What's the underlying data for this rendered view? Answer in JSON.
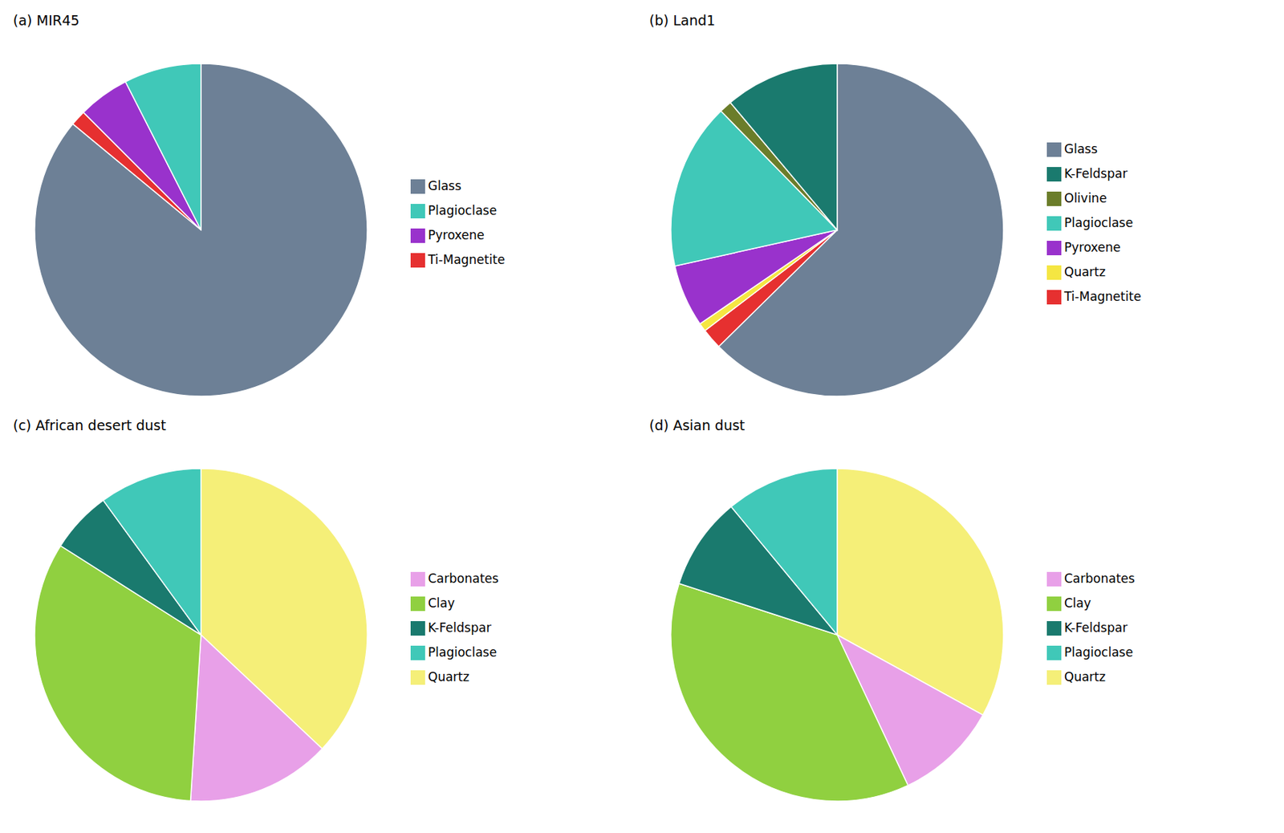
{
  "chart_data": [
    {
      "type": "pie",
      "title": "(a)  MIR45",
      "categories": [
        "Glass",
        "Ti-Magnetite",
        "Pyroxene",
        "Plagioclase"
      ],
      "values": [
        86,
        1.5,
        5,
        7.5
      ],
      "colors": [
        "#6d8096",
        "#e63030",
        "#9932cc",
        "#40c8b8"
      ],
      "legend": "right"
    },
    {
      "type": "pie",
      "title": "(b)  Land1",
      "categories": [
        "Glass",
        "Ti-Magnetite",
        "Quartz",
        "Pyroxene",
        "Plagioclase",
        "Olivine",
        "K-Feldspar"
      ],
      "values": [
        62,
        2,
        0.8,
        6,
        16,
        1.2,
        11
      ],
      "colors": [
        "#6d8096",
        "#e63030",
        "#f5e642",
        "#9932cc",
        "#40c8b8",
        "#6b7d2a",
        "#1a7a6e"
      ],
      "legend": "right"
    },
    {
      "type": "pie",
      "title": "(c)  African desert dust",
      "categories": [
        "Quartz",
        "Carbonates",
        "Clay",
        "K-Feldspar",
        "Plagioclase"
      ],
      "values": [
        37,
        14,
        33,
        6,
        10
      ],
      "colors": [
        "#f5ef78",
        "#e8a0e8",
        "#90d040",
        "#1a7a6e",
        "#40c8b8"
      ],
      "legend": "right"
    },
    {
      "type": "pie",
      "title": "(d)  Asian dust",
      "categories": [
        "Quartz",
        "Carbonates",
        "Clay",
        "K-Feldspar",
        "Plagioclase"
      ],
      "values": [
        33,
        10,
        37,
        9,
        11
      ],
      "colors": [
        "#f5ef78",
        "#e8a0e8",
        "#90d040",
        "#1a7a6e",
        "#40c8b8"
      ],
      "legend": "right"
    }
  ]
}
